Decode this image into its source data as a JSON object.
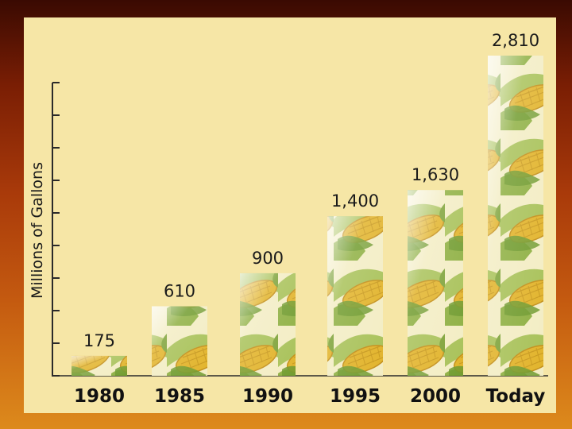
{
  "chart_data": {
    "type": "bar",
    "categories": [
      "1980",
      "1985",
      "1990",
      "1995",
      "2000",
      "Today"
    ],
    "values": [
      175,
      610,
      900,
      1400,
      1630,
      2810
    ],
    "value_labels": [
      "175",
      "610",
      "900",
      "1,400",
      "1,630",
      "2,810"
    ],
    "ylabel": "Millions of Gallons",
    "xlabel": "",
    "title": "",
    "ylim": [
      0,
      2810
    ],
    "grid": false,
    "bar_fill": "corn-cob-pattern",
    "colors": {
      "panel": "#f6e6a6",
      "kernel": "#e2b42c",
      "husk": "#7fa33a",
      "text": "#1a1a1a"
    }
  }
}
